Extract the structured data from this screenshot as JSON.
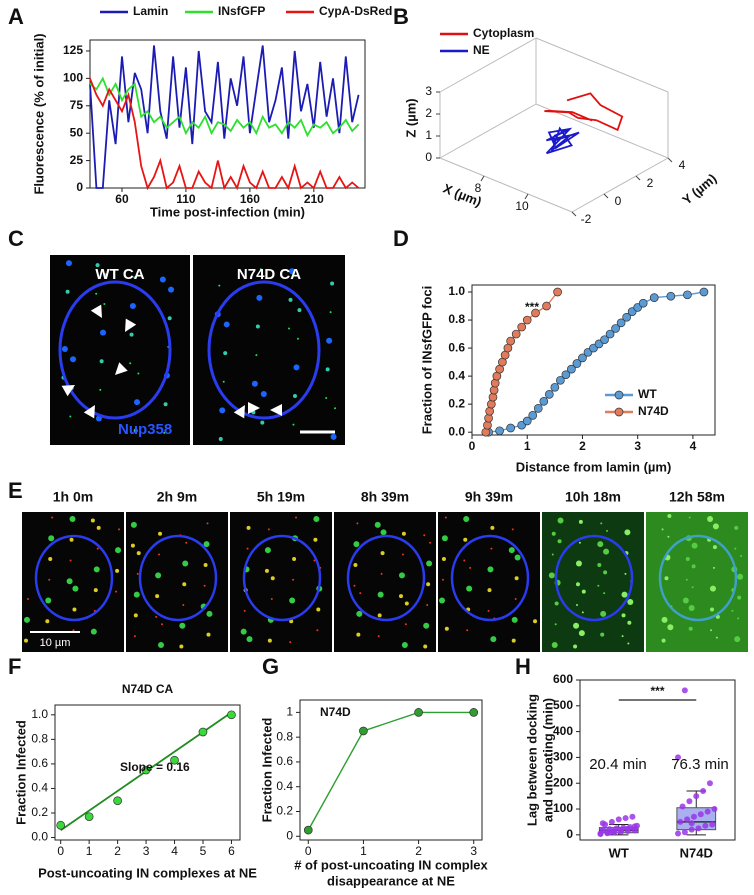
{
  "chart_data": [
    {
      "type": "line",
      "panel_label": "A",
      "xlabel": "Time post-infection (min)",
      "ylabel": "Fluorescence (% of initial)",
      "xlim": [
        35,
        250
      ],
      "ylim": [
        0,
        135
      ],
      "xticks": [
        60,
        110,
        160,
        210
      ],
      "yticks": [
        0,
        25,
        50,
        75,
        100,
        125
      ],
      "legend": "top",
      "x": [
        35,
        40,
        45,
        50,
        55,
        60,
        65,
        70,
        75,
        80,
        85,
        90,
        95,
        100,
        105,
        110,
        115,
        120,
        125,
        130,
        135,
        140,
        145,
        150,
        155,
        160,
        165,
        170,
        175,
        180,
        185,
        190,
        195,
        200,
        205,
        210,
        215,
        220,
        225,
        230,
        235,
        240,
        245
      ],
      "series": [
        {
          "name": "Lamin",
          "color": "#1c1cb4",
          "mode": "lines",
          "values": [
            95,
            0,
            0,
            80,
            40,
            120,
            60,
            105,
            90,
            50,
            130,
            70,
            45,
            120,
            55,
            110,
            40,
            125,
            70,
            60,
            115,
            45,
            100,
            75,
            120,
            50,
            90,
            130,
            60,
            80,
            110,
            45,
            125,
            70,
            95,
            55,
            115,
            65,
            100,
            50,
            120,
            60,
            85
          ]
        },
        {
          "name": "INsfGFP",
          "color": "#2ee02e",
          "mode": "lines",
          "values": [
            95,
            90,
            100,
            85,
            95,
            80,
            90,
            95,
            65,
            70,
            60,
            65,
            55,
            60,
            65,
            50,
            60,
            55,
            65,
            50,
            60,
            58,
            52,
            62,
            55,
            60,
            50,
            65,
            55,
            58,
            50,
            60,
            55,
            62,
            48,
            58,
            55,
            60,
            50,
            55,
            62,
            52,
            58
          ]
        },
        {
          "name": "CypA-DsRed",
          "color": "#e81414",
          "mode": "lines",
          "values": [
            100,
            85,
            75,
            90,
            80,
            70,
            85,
            60,
            20,
            0,
            10,
            25,
            0,
            5,
            20,
            0,
            0,
            15,
            5,
            0,
            25,
            0,
            10,
            0,
            20,
            5,
            0,
            15,
            0,
            0,
            10,
            0,
            20,
            0,
            5,
            0,
            15,
            0,
            0,
            10,
            0,
            5,
            0
          ]
        }
      ]
    },
    {
      "type": "line3d",
      "panel_label": "B",
      "xlabel": "X (µm)",
      "ylabel": "Y (µm)",
      "zlabel": "Z (µm)",
      "xlim": [
        6,
        12
      ],
      "ylim": [
        -2,
        4
      ],
      "zlim": [
        0,
        3
      ],
      "xticks": [
        8,
        10
      ],
      "yticks": [
        -2,
        0,
        2,
        4
      ],
      "zticks": [
        0,
        1,
        2,
        3
      ],
      "legend": "upper left",
      "series": [
        {
          "name": "Cytoplasm",
          "color": "#e01010",
          "x": [
            8.5,
            9.2,
            9.8,
            10.5,
            10.8,
            10.2,
            9.5,
            8.8,
            8.2,
            8.6,
            9.4,
            10.0
          ],
          "y": [
            2.5,
            3.0,
            2.8,
            3.2,
            2.5,
            2.0,
            1.8,
            2.2,
            1.5,
            1.2,
            1.6,
            2.0
          ],
          "z": [
            1.8,
            2.2,
            2.0,
            1.6,
            1.4,
            1.8,
            1.7,
            1.5,
            1.6,
            1.9,
            2.0,
            1.7
          ]
        },
        {
          "name": "NE",
          "color": "#1a1acc",
          "x": [
            9.0,
            9.4,
            8.8,
            9.6,
            9.2,
            8.9,
            9.8,
            9.1,
            9.5,
            8.7,
            9.3,
            9.7,
            9.0,
            9.4
          ],
          "y": [
            1.0,
            1.4,
            0.8,
            1.2,
            0.6,
            1.5,
            1.0,
            0.4,
            1.3,
            1.1,
            0.7,
            1.6,
            0.9,
            1.2
          ],
          "z": [
            1.0,
            1.3,
            0.8,
            1.2,
            0.6,
            1.1,
            0.9,
            0.5,
            1.4,
            1.0,
            0.7,
            1.2,
            0.8,
            1.1
          ]
        }
      ]
    },
    {
      "type": "line",
      "panel_label": "D",
      "xlabel": "Distance from lamin (µm)",
      "ylabel": "Fraction of INsfGFP foci",
      "xlim": [
        0,
        4.4
      ],
      "ylim": [
        -0.02,
        1.05
      ],
      "xticks": [
        0,
        1,
        2,
        3,
        4
      ],
      "yticks": [
        {
          "value": 0,
          "label": "0.0"
        },
        0.2,
        0.4,
        0.6,
        0.8,
        {
          "value": 1,
          "label": "1.0"
        }
      ],
      "legend": "lower right",
      "annotations": [
        "***"
      ],
      "series": [
        {
          "name": "WT",
          "color": "#5b9bd5",
          "mode": "lines+markers",
          "x": [
            0.3,
            0.5,
            0.7,
            0.9,
            1.0,
            1.1,
            1.2,
            1.3,
            1.4,
            1.5,
            1.6,
            1.7,
            1.8,
            1.9,
            2.0,
            2.1,
            2.2,
            2.3,
            2.4,
            2.5,
            2.6,
            2.7,
            2.8,
            2.9,
            3.0,
            3.1,
            3.3,
            3.6,
            3.9,
            4.2
          ],
          "values": [
            0.0,
            0.01,
            0.03,
            0.05,
            0.08,
            0.12,
            0.17,
            0.22,
            0.27,
            0.32,
            0.37,
            0.41,
            0.45,
            0.49,
            0.53,
            0.57,
            0.6,
            0.63,
            0.66,
            0.7,
            0.74,
            0.78,
            0.82,
            0.86,
            0.89,
            0.92,
            0.96,
            0.97,
            0.98,
            1.0
          ]
        },
        {
          "name": "N74D",
          "color": "#e07b5c",
          "mode": "lines+markers",
          "x": [
            0.25,
            0.28,
            0.3,
            0.32,
            0.35,
            0.38,
            0.4,
            0.42,
            0.45,
            0.5,
            0.55,
            0.6,
            0.65,
            0.7,
            0.8,
            0.9,
            1.0,
            1.15,
            1.35,
            1.55
          ],
          "values": [
            0.0,
            0.05,
            0.1,
            0.15,
            0.2,
            0.25,
            0.3,
            0.35,
            0.4,
            0.45,
            0.5,
            0.55,
            0.6,
            0.65,
            0.7,
            0.75,
            0.8,
            0.85,
            0.9,
            1.0
          ]
        }
      ]
    },
    {
      "type": "scatter",
      "panel_label": "F",
      "title": "N74D CA",
      "xlabel": "Post-uncoating IN complexes at NE",
      "ylabel": "Fraction Infected",
      "xlim": [
        -0.2,
        6.3
      ],
      "ylim": [
        -0.02,
        1.08
      ],
      "xticks": [
        0,
        1,
        2,
        3,
        4,
        5,
        6
      ],
      "yticks": [
        {
          "value": 0,
          "label": "0.0"
        },
        0.2,
        0.4,
        0.6,
        0.8,
        {
          "value": 1,
          "label": "1.0"
        }
      ],
      "annotations": [
        "Slope = 0.16"
      ],
      "series": [
        {
          "color": "#1e8c1e",
          "mode": "lines",
          "x": [
            0,
            6
          ],
          "values": [
            0.06,
            1.02
          ]
        },
        {
          "color": "#3ad83a",
          "mode": "markers",
          "x": [
            0,
            1,
            2,
            3,
            4,
            5,
            6
          ],
          "values": [
            0.1,
            0.17,
            0.3,
            0.55,
            0.63,
            0.86,
            1.0
          ]
        }
      ]
    },
    {
      "type": "line",
      "panel_label": "G",
      "xlabel": [
        "# of post-uncoating IN complex",
        "disappearance at NE"
      ],
      "ylabel": "Fraction Infected",
      "xlim": [
        -0.15,
        3.15
      ],
      "ylim": [
        -0.03,
        1.1
      ],
      "xticks": [
        0,
        1,
        2,
        3
      ],
      "yticks": [
        0,
        0.2,
        0.4,
        0.6,
        0.8,
        1
      ],
      "annotations": [
        "N74D"
      ],
      "x": [
        0,
        1,
        2,
        3
      ],
      "series": [
        {
          "color": "#2e9e2e",
          "mode": "lines+markers",
          "values": [
            0.05,
            0.85,
            1.0,
            1.0
          ]
        }
      ]
    },
    {
      "type": "box",
      "panel_label": "H",
      "ylabel": [
        "Lag between docking",
        "and uncoating (min)"
      ],
      "categories": [
        "WT",
        "N74D"
      ],
      "ylim": [
        -20,
        600
      ],
      "yticks": [
        0,
        100,
        200,
        300,
        400,
        500,
        600
      ],
      "annotations": [
        "20.4 min",
        "76.3 min"
      ],
      "significance": "***",
      "box_color": "#a8b0f0",
      "point_color": "#9a35e8",
      "boxes": [
        {
          "low": 0,
          "q1": 8,
          "median": 18,
          "q3": 28,
          "high": 40
        },
        {
          "low": 0,
          "q1": 20,
          "median": 50,
          "q3": 105,
          "high": 170
        }
      ],
      "points": [
        [
          5,
          8,
          10,
          12,
          15,
          18,
          20,
          22,
          25,
          28,
          30,
          35,
          40,
          50,
          60,
          65,
          70,
          3,
          6,
          14,
          19,
          24,
          33,
          45,
          10
        ],
        [
          5,
          10,
          20,
          25,
          35,
          40,
          50,
          60,
          70,
          80,
          90,
          100,
          110,
          130,
          150,
          170,
          200,
          300,
          560,
          45
        ]
      ]
    }
  ],
  "image_panels": {
    "C": {
      "panel_label": "C",
      "labels": [
        "WT CA",
        "N74D CA"
      ],
      "stain": "Nup358"
    },
    "E": {
      "panel_label": "E",
      "times": [
        "1h 0m",
        "2h 9m",
        "5h 19m",
        "8h 39m",
        "9h 39m",
        "10h 18m",
        "12h 58m"
      ],
      "scale": "10 µm"
    }
  }
}
